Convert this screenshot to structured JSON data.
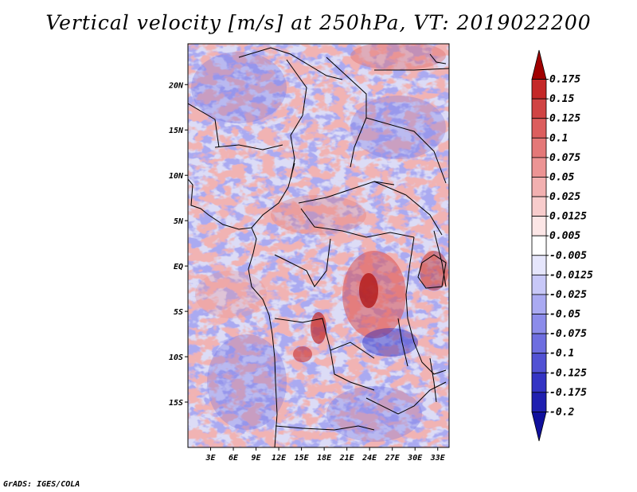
{
  "title": "Vertical velocity [m/s] at 250hPa, VT: 2019022200",
  "footer": "GrADS: IGES/COLA",
  "map": {
    "lon_range": [
      0,
      34.5
    ],
    "lat_range": [
      -20,
      24.5
    ],
    "lat_ticks": [
      {
        "value": 20,
        "label": "20N"
      },
      {
        "value": 15,
        "label": "15N"
      },
      {
        "value": 10,
        "label": "10N"
      },
      {
        "value": 5,
        "label": "5N"
      },
      {
        "value": 0,
        "label": "EQ"
      },
      {
        "value": -5,
        "label": "5S"
      },
      {
        "value": -10,
        "label": "10S"
      },
      {
        "value": -15,
        "label": "15S"
      }
    ],
    "lon_ticks": [
      {
        "value": 3,
        "label": "3E"
      },
      {
        "value": 6,
        "label": "6E"
      },
      {
        "value": 9,
        "label": "9E"
      },
      {
        "value": 12,
        "label": "12E"
      },
      {
        "value": 15,
        "label": "15E"
      },
      {
        "value": 18,
        "label": "18E"
      },
      {
        "value": 21,
        "label": "21E"
      },
      {
        "value": 24,
        "label": "24E"
      },
      {
        "value": 27,
        "label": "27E"
      },
      {
        "value": 30,
        "label": "30E"
      },
      {
        "value": 33,
        "label": "33E"
      }
    ]
  },
  "colorbar": {
    "levels": [
      {
        "label": "0.175",
        "color": "#b01010"
      },
      {
        "label": "0.15",
        "color": "#c42828"
      },
      {
        "label": "0.125",
        "color": "#d04444"
      },
      {
        "label": "0.1",
        "color": "#dc5e5e"
      },
      {
        "label": "0.075",
        "color": "#e47878"
      },
      {
        "label": "0.05",
        "color": "#ec9494"
      },
      {
        "label": "0.025",
        "color": "#f2b0b0"
      },
      {
        "label": "0.0125",
        "color": "#f8cccc"
      },
      {
        "label": "0.005",
        "color": "#fce6e6"
      },
      {
        "label": "-0.005",
        "color": "#ffffff"
      },
      {
        "label": "-0.0125",
        "color": "#e6e6fc"
      },
      {
        "label": "-0.025",
        "color": "#c8c8f8"
      },
      {
        "label": "-0.05",
        "color": "#aaaaf2"
      },
      {
        "label": "-0.075",
        "color": "#8c8cea"
      },
      {
        "label": "-0.1",
        "color": "#6e6ee0"
      },
      {
        "label": "-0.125",
        "color": "#5252d4"
      },
      {
        "label": "-0.175",
        "color": "#3434c4"
      },
      {
        "label": "-0.2",
        "color": "#2020b0"
      }
    ],
    "top_color": "#a00000",
    "bottom_color": "#10109c"
  }
}
